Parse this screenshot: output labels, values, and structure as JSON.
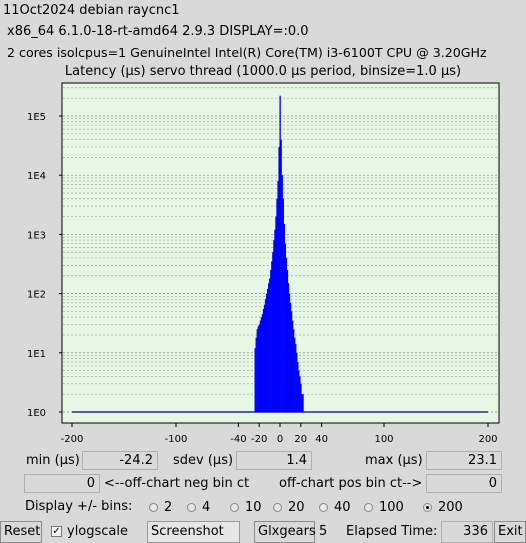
{
  "header": {
    "line1": "11Oct2024 debian raycnc1",
    "line2": "x86_64  6.1.0-18-rt-amd64  2.9.3  DISPLAY=:0.0",
    "line3": "2 cores  isolcpus=1  GenuineIntel  Intel(R) Core(TM) i3-6100T CPU @ 3.20GHz"
  },
  "chart_data": {
    "type": "bar",
    "title": "Latency (µs) servo thread (1000.0 µs period, binsize=1.0 µs)",
    "xlabel": "",
    "ylabel": "",
    "xlim": [
      -200,
      200
    ],
    "ylim_log10": [
      0,
      5.5
    ],
    "yscale": "log",
    "grid": true,
    "x_ticks": [
      -200,
      -100,
      -40,
      -20,
      0,
      20,
      40,
      100,
      200
    ],
    "y_tick_labels": [
      "1E0",
      "1E1",
      "1E2",
      "1E3",
      "1E4",
      "1E5"
    ],
    "bins": [
      {
        "x": -24,
        "y": 12
      },
      {
        "x": -23,
        "y": 18
      },
      {
        "x": -22,
        "y": 25
      },
      {
        "x": -21,
        "y": 28
      },
      {
        "x": -20,
        "y": 30
      },
      {
        "x": -19,
        "y": 35
      },
      {
        "x": -18,
        "y": 40
      },
      {
        "x": -17,
        "y": 45
      },
      {
        "x": -16,
        "y": 55
      },
      {
        "x": -15,
        "y": 65
      },
      {
        "x": -14,
        "y": 80
      },
      {
        "x": -13,
        "y": 100
      },
      {
        "x": -12,
        "y": 120
      },
      {
        "x": -11,
        "y": 150
      },
      {
        "x": -10,
        "y": 180
      },
      {
        "x": -9,
        "y": 250
      },
      {
        "x": -8,
        "y": 350
      },
      {
        "x": -7,
        "y": 500
      },
      {
        "x": -6,
        "y": 800
      },
      {
        "x": -5,
        "y": 1200
      },
      {
        "x": -4,
        "y": 2000
      },
      {
        "x": -3,
        "y": 4000
      },
      {
        "x": -2,
        "y": 8000
      },
      {
        "x": -1,
        "y": 30000
      },
      {
        "x": 0,
        "y": 220000
      },
      {
        "x": 1,
        "y": 40000
      },
      {
        "x": 2,
        "y": 10000
      },
      {
        "x": 3,
        "y": 4000
      },
      {
        "x": 4,
        "y": 1500
      },
      {
        "x": 5,
        "y": 700
      },
      {
        "x": 6,
        "y": 400
      },
      {
        "x": 7,
        "y": 250
      },
      {
        "x": 8,
        "y": 150
      },
      {
        "x": 9,
        "y": 100
      },
      {
        "x": 10,
        "y": 70
      },
      {
        "x": 11,
        "y": 50
      },
      {
        "x": 12,
        "y": 35
      },
      {
        "x": 13,
        "y": 25
      },
      {
        "x": 14,
        "y": 18
      },
      {
        "x": 15,
        "y": 14
      },
      {
        "x": 16,
        "y": 10
      },
      {
        "x": 17,
        "y": 7
      },
      {
        "x": 18,
        "y": 5
      },
      {
        "x": 19,
        "y": 4
      },
      {
        "x": 20,
        "y": 3
      },
      {
        "x": 21,
        "y": 2
      },
      {
        "x": 22,
        "y": 2
      },
      {
        "x": 23,
        "y": 1
      }
    ]
  },
  "stats": {
    "min_label": "min (µs)",
    "min_value": "-24.2",
    "sdev_label": "sdev (µs)",
    "sdev_value": "1.4",
    "max_label": "max (µs)",
    "max_value": "23.1",
    "neg_value": "0",
    "neg_label": "<--off-chart neg bin ct",
    "pos_label": "off-chart pos bin ct-->",
    "pos_value": "0"
  },
  "bins_selector": {
    "label": "Display +/- bins:",
    "options": [
      "2",
      "4",
      "10",
      "20",
      "40",
      "100",
      "200"
    ],
    "selected": "200"
  },
  "footer": {
    "reset": "Reset",
    "ylogscale": "ylogscale",
    "ylogscale_checked": "✓",
    "screenshot": "Screenshot",
    "glxgears": "Glxgears",
    "glxgears_count": "5",
    "elapsed_label": "Elapsed Time:",
    "elapsed_value": "336",
    "exit": "Exit"
  },
  "colors": {
    "plot_bg": "#e6f7e6",
    "bar": "#0000ff",
    "baseline": "#000080"
  }
}
